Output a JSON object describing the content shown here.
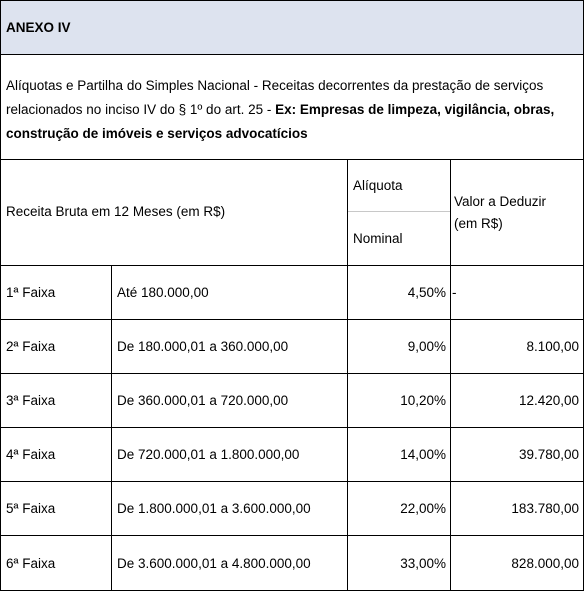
{
  "annex": {
    "title": "ANEXO IV"
  },
  "description": {
    "text": "Alíquotas e Partilha do Simples Nacional - Receitas decorrentes da prestação de serviços relacionados no inciso IV do § 1º do art. 25 - ",
    "bold": "Ex: Empresas de limpeza, vigilância, obras, construção de imóveis e serviços advocatícios"
  },
  "table": {
    "headers": {
      "receita": "Receita Bruta em 12 Meses (em R$)",
      "aliquota": "Alíquota",
      "nominal": "Nominal",
      "deduzir": "Valor a Deduzir (em R$)"
    },
    "rows": [
      {
        "faixa": "1ª Faixa",
        "range": "Até 180.000,00",
        "aliquota": "4,50%",
        "deduzir": "-"
      },
      {
        "faixa": "2ª Faixa",
        "range": "De 180.000,01 a 360.000,00",
        "aliquota": "9,00%",
        "deduzir": "8.100,00"
      },
      {
        "faixa": "3ª Faixa",
        "range": "De 360.000,01 a 720.000,00",
        "aliquota": "10,20%",
        "deduzir": "12.420,00"
      },
      {
        "faixa": "4ª Faixa",
        "range": "De 720.000,01 a 1.800.000,00",
        "aliquota": "14,00%",
        "deduzir": "39.780,00"
      },
      {
        "faixa": "5ª Faixa",
        "range": "De 1.800.000,01 a 3.600.000,00",
        "aliquota": "22,00%",
        "deduzir": "183.780,00"
      },
      {
        "faixa": "6ª Faixa",
        "range": "De 3.600.000,01 a 4.800.000,00",
        "aliquota": "33,00%",
        "deduzir": "828.000,00"
      }
    ]
  }
}
